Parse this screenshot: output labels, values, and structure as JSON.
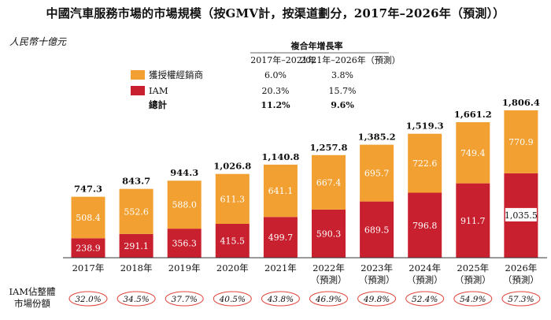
{
  "chart_data": {
    "type": "bar",
    "stacked": true,
    "title": "中國汽車服務市場的市場規模（按GMV計，按渠道劃分，2017年–2026年（預測））",
    "unit": "人民幣十億元",
    "categories": [
      [
        "2017年",
        ""
      ],
      [
        "2018年",
        ""
      ],
      [
        "2019年",
        ""
      ],
      [
        "2020年",
        ""
      ],
      [
        "2021年",
        ""
      ],
      [
        "2022年",
        "（預測）"
      ],
      [
        "2023年",
        "（預測）"
      ],
      [
        "2024年",
        "（預測）"
      ],
      [
        "2025年",
        "（預測）"
      ],
      [
        "2026年",
        "（預測）"
      ]
    ],
    "series": [
      {
        "name": "IAM",
        "color": "#c8202f",
        "values": [
          238.9,
          291.1,
          356.3,
          415.5,
          499.7,
          590.3,
          689.5,
          796.8,
          911.7,
          1035.5
        ],
        "labels": [
          "238.9",
          "291.1",
          "356.3",
          "415.5",
          "499.7",
          "590.3",
          "689.5",
          "796.8",
          "911.7",
          "1,035.5"
        ]
      },
      {
        "name": "獲授權經銷商",
        "color": "#f1a031",
        "values": [
          508.4,
          552.6,
          588.0,
          611.3,
          641.1,
          667.4,
          695.7,
          722.6,
          749.4,
          770.9
        ],
        "labels": [
          "508.4",
          "552.6",
          "588.0",
          "611.3",
          "641.1",
          "667.4",
          "695.7",
          "722.6",
          "749.4",
          "770.9"
        ]
      }
    ],
    "totals": [
      "747.3",
      "843.7",
      "944.3",
      "1,026.8",
      "1,140.8",
      "1,257.8",
      "1,385.2",
      "1,519.3",
      "1,661.2",
      "1,806.4"
    ],
    "total_values": [
      747.3,
      843.7,
      944.3,
      1026.8,
      1140.8,
      1257.8,
      1385.2,
      1519.3,
      1661.2,
      1806.4
    ],
    "ylim": [
      0,
      1806.4
    ],
    "cagr_table": {
      "header": "複合年增長率",
      "periods": [
        "2017年–2021年",
        "2021年–2026年（預測）"
      ],
      "rows": [
        {
          "name": "獲授權經銷商",
          "color": "#f1a031",
          "values": [
            "6.0%",
            "3.8%"
          ]
        },
        {
          "name": "IAM",
          "color": "#c8202f",
          "values": [
            "20.3%",
            "15.7%"
          ]
        },
        {
          "name": "總計",
          "color": "",
          "values": [
            "11.2%",
            "9.6%"
          ],
          "bold": true
        }
      ]
    },
    "share_row": {
      "label_lines": [
        "IAM佔整體",
        "市場份額"
      ],
      "values": [
        "32.0%",
        "34.5%",
        "37.7%",
        "40.5%",
        "43.8%",
        "46.9%",
        "49.8%",
        "52.4%",
        "54.9%",
        "57.3%"
      ]
    }
  }
}
